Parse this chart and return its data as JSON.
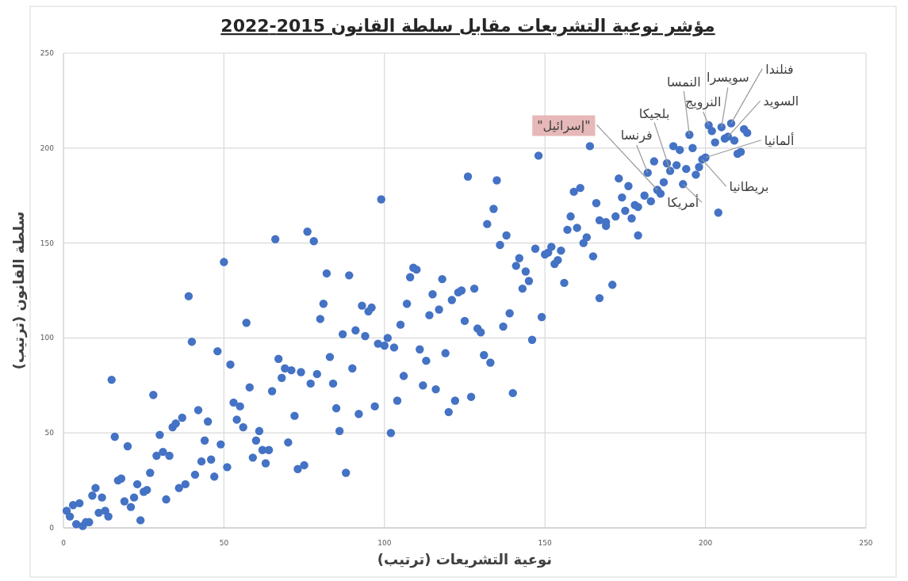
{
  "chart_data": {
    "type": "scatter",
    "title": "مؤشر نوعية التشريعات مقابل سلطة القانون 2015-2022",
    "xlabel": "نوعية التشريعات (ترتيب)",
    "ylabel": "سلطة القانون (ترتيب)",
    "color": "#4472c4",
    "marker": "circle",
    "grid": true,
    "xlim": [
      0,
      250
    ],
    "ylim": [
      0,
      250
    ],
    "xticks": [
      0,
      50,
      100,
      150,
      200,
      250
    ],
    "yticks": [
      0,
      50,
      100,
      150,
      200,
      250
    ],
    "x": [
      1,
      2,
      3,
      4,
      5,
      6,
      7,
      8,
      9,
      10,
      11,
      12,
      13,
      14,
      15,
      16,
      17,
      18,
      19,
      20,
      21,
      22,
      23,
      24,
      25,
      26,
      27,
      28,
      29,
      30,
      31,
      32,
      33,
      34,
      35,
      36,
      37,
      38,
      39,
      40,
      41,
      42,
      43,
      44,
      45,
      46,
      47,
      48,
      49,
      50,
      51,
      52,
      53,
      54,
      55,
      56,
      57,
      58,
      59,
      60,
      61,
      62,
      63,
      64,
      65,
      66,
      67,
      68,
      69,
      70,
      71,
      72,
      73,
      74,
      75,
      76,
      77,
      78,
      79,
      80,
      81,
      82,
      83,
      84,
      85,
      86,
      87,
      88,
      89,
      90,
      91,
      92,
      93,
      94,
      95,
      96,
      97,
      98,
      99,
      100,
      101,
      102,
      103,
      104,
      105,
      106,
      107,
      108,
      109,
      110,
      111,
      112,
      113,
      114,
      115,
      116,
      117,
      118,
      119,
      120,
      121,
      122,
      123,
      124,
      125,
      126,
      127,
      128,
      129,
      130,
      131,
      132,
      133,
      134,
      135,
      136,
      137,
      138,
      139,
      140,
      141,
      142,
      143,
      144,
      145,
      146,
      147,
      148,
      149,
      150,
      151,
      152,
      153,
      154,
      155,
      156,
      157,
      158,
      159,
      160,
      161,
      162,
      163,
      164,
      165,
      166,
      167,
      167,
      169,
      169,
      171,
      172,
      173,
      174,
      175,
      176,
      177,
      178,
      179,
      179,
      181,
      182,
      183,
      184,
      185,
      186,
      187,
      188,
      189,
      190,
      191,
      192,
      193,
      194,
      195,
      196,
      197,
      198,
      199,
      200,
      201,
      202,
      203,
      204,
      205,
      206,
      207,
      208,
      209,
      210,
      211,
      212,
      213
    ],
    "values": [
      9,
      6,
      12,
      2,
      13,
      1,
      3,
      3,
      17,
      21,
      8,
      16,
      9,
      6,
      78,
      48,
      25,
      26,
      14,
      43,
      11,
      16,
      23,
      4,
      19,
      20,
      29,
      70,
      38,
      49,
      40,
      15,
      38,
      53,
      55,
      21,
      58,
      23,
      122,
      98,
      28,
      62,
      35,
      46,
      56,
      36,
      27,
      93,
      44,
      140,
      32,
      86,
      66,
      57,
      64,
      53,
      108,
      74,
      37,
      46,
      51,
      41,
      34,
      41,
      72,
      152,
      89,
      79,
      84,
      45,
      83,
      59,
      31,
      82,
      33,
      156,
      76,
      151,
      81,
      110,
      118,
      134,
      90,
      76,
      63,
      51,
      102,
      29,
      133,
      84,
      104,
      60,
      117,
      101,
      114,
      116,
      64,
      97,
      173,
      96,
      100,
      50,
      95,
      67,
      107,
      80,
      118,
      132,
      137,
      136,
      94,
      75,
      88,
      112,
      123,
      73,
      115,
      131,
      92,
      61,
      120,
      67,
      124,
      125,
      109,
      185,
      69,
      126,
      105,
      103,
      91,
      160,
      87,
      168,
      183,
      149,
      106,
      154,
      113,
      71,
      138,
      142,
      126,
      135,
      130,
      99,
      147,
      196,
      111,
      144,
      145,
      148,
      139,
      141,
      146,
      129,
      157,
      164,
      177,
      158,
      179,
      150,
      153,
      201,
      143,
      171,
      162,
      121,
      161,
      159,
      128,
      164,
      184,
      174,
      167,
      180,
      163,
      170,
      169,
      154,
      175,
      187,
      172,
      193,
      178,
      176,
      182,
      192,
      188,
      201,
      191,
      199,
      181,
      189,
      207,
      200,
      186,
      190,
      194,
      195,
      212,
      209,
      203,
      166,
      211,
      205,
      206,
      213,
      204,
      197,
      198,
      210,
      208
    ],
    "annotations": [
      {
        "text": "فنلندا",
        "x": 208,
        "y": 213
      },
      {
        "text": "سويسرا",
        "x": 205,
        "y": 211
      },
      {
        "text": "النمسا",
        "x": 195,
        "y": 207
      },
      {
        "text": "النرويج",
        "x": 201,
        "y": 212
      },
      {
        "text": "السويد",
        "x": 207,
        "y": 206
      },
      {
        "text": "بلجيكا",
        "x": 189,
        "y": 188
      },
      {
        "text": "\"إسرائيل\"",
        "x": 185,
        "y": 178
      },
      {
        "text": "فرنسا",
        "x": 182,
        "y": 187
      },
      {
        "text": "ألمانيا",
        "x": 200,
        "y": 195
      },
      {
        "text": "بريطانيا",
        "x": 199,
        "y": 194
      },
      {
        "text": "أمريكا",
        "x": 193,
        "y": 181
      }
    ]
  }
}
